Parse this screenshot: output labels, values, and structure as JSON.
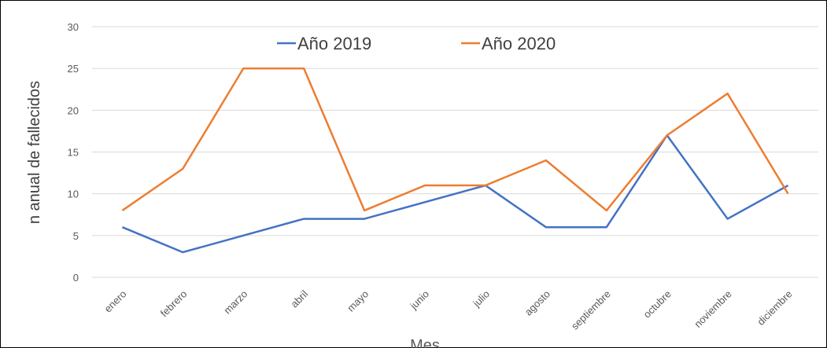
{
  "chart_data": {
    "type": "line",
    "categories": [
      "enero",
      "febrero",
      "marzo",
      "abril",
      "mayo",
      "junio",
      "julio",
      "agosto",
      "septiembre",
      "octubre",
      "noviembre",
      "diciembre"
    ],
    "series": [
      {
        "name": "Año 2019",
        "color": "#4472c4",
        "values": [
          6,
          3,
          5,
          7,
          7,
          9,
          11,
          6,
          6,
          17,
          7,
          11
        ]
      },
      {
        "name": "Año 2020",
        "color": "#ed7d31",
        "values": [
          8,
          13,
          25,
          25,
          8,
          11,
          11,
          14,
          8,
          17,
          22,
          10
        ]
      }
    ],
    "ylim": [
      0,
      30
    ],
    "yticks": [
      0,
      5,
      10,
      15,
      20,
      25,
      30
    ],
    "grid": true,
    "xlabel": "Mes",
    "ylabel": "n anual de fallecidos",
    "legend": "top"
  }
}
